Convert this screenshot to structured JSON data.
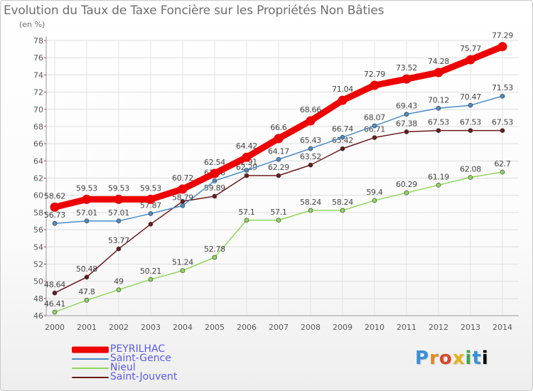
{
  "title": "Evolution du Taux de Taxe Foncière sur les Propriétés Non Bâties",
  "unit_label": "(en %)",
  "logo_text": "Proxiti",
  "chart_data": {
    "type": "line",
    "title": "Evolution du Taux de Taxe Foncière sur les Propriétés Non Bâties",
    "xlabel": "",
    "ylabel": "(en %)",
    "x": [
      "2000",
      "2001",
      "2002",
      "2003",
      "2004",
      "2005",
      "2006",
      "2007",
      "2008",
      "2009",
      "2010",
      "2011",
      "2012",
      "2013",
      "2014"
    ],
    "ylim": [
      46,
      78
    ],
    "yticks": [
      "46",
      "48",
      "50",
      "52",
      "54",
      "56",
      "58",
      "60",
      "62",
      "64",
      "66",
      "68",
      "70",
      "72",
      "74",
      "76",
      "78"
    ],
    "grid": true,
    "legend_position": "bottom-left",
    "series": [
      {
        "name": "Saint-Jouvent",
        "color": "#6b1a1a",
        "values": [
          48.64,
          50.48,
          53.77,
          56.64,
          59.29,
          59.89,
          62.29,
          62.29,
          63.52,
          65.42,
          66.71,
          67.38,
          67.53,
          67.53,
          67.53
        ],
        "labels": [
          "48.64",
          "50.48",
          "53.77",
          "",
          "",
          "59.89",
          "62.29",
          "62.29",
          "63.52",
          "65.42",
          "66.71",
          "67.38",
          "67.53",
          "67.53",
          "67.53"
        ]
      },
      {
        "name": "Nieul",
        "color": "#8fd85a",
        "values": [
          46.41,
          47.8,
          49,
          50.21,
          51.24,
          52.78,
          57.1,
          57.1,
          58.24,
          58.24,
          59.4,
          60.29,
          61.19,
          62.08,
          62.7
        ],
        "labels": [
          "46.41",
          "47.8",
          "49",
          "50.21",
          "51.24",
          "52.78",
          "57.1",
          "57.1",
          "58.24",
          "58.24",
          "59.4",
          "60.29",
          "61.19",
          "62.08",
          "62.7"
        ]
      },
      {
        "name": "Saint-Gence",
        "color": "#4a8cc8",
        "values": [
          56.73,
          57.01,
          57.01,
          57.87,
          58.79,
          61.68,
          62.91,
          64.17,
          65.43,
          66.74,
          68.07,
          69.43,
          70.12,
          70.47,
          71.53
        ],
        "labels": [
          "56.73",
          "57.01",
          "57.01",
          "57.87",
          "58.79",
          "61.68",
          "62.91",
          "64.17",
          "65.43",
          "66.74",
          "68.07",
          "69.43",
          "70.12",
          "70.47",
          "71.53"
        ]
      },
      {
        "name": "PEYRILHAC",
        "color": "#ee0000",
        "values": [
          58.62,
          59.53,
          59.53,
          59.53,
          60.72,
          62.54,
          64.42,
          66.6,
          68.66,
          71.04,
          72.79,
          73.52,
          74.28,
          75.77,
          77.29
        ],
        "labels": [
          "58.62",
          "59.53",
          "59.53",
          "59.53",
          "60.72",
          "62.54",
          "64.42",
          "66.6",
          "68.66",
          "71.04",
          "72.79",
          "73.52",
          "74.28",
          "75.77",
          "77.29"
        ]
      }
    ]
  },
  "legend": [
    {
      "name": "PEYRILHAC",
      "color": "#ee0000"
    },
    {
      "name": "Saint-Gence",
      "color": "#4a8cc8"
    },
    {
      "name": "Nieul",
      "color": "#8fd85a"
    },
    {
      "name": "Saint-Jouvent",
      "color": "#6b1a1a"
    }
  ]
}
